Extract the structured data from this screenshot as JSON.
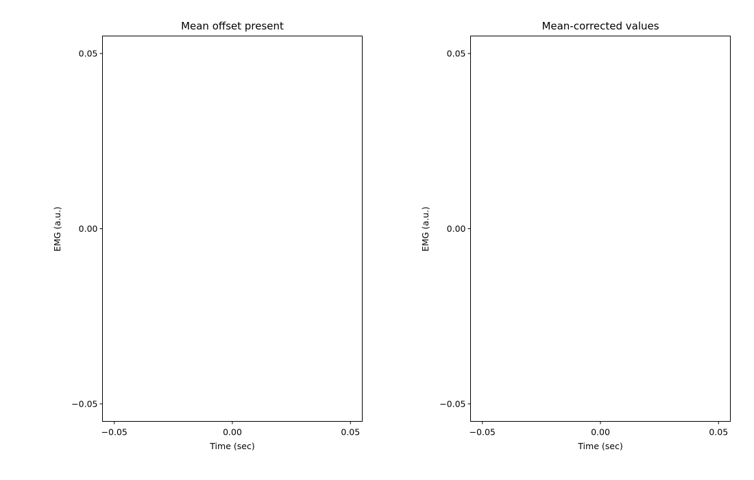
{
  "chart_data": [
    {
      "type": "line",
      "title": "Mean offset present",
      "xlabel": "Time (sec)",
      "ylabel": "EMG (a.u.)",
      "xlim": [
        -0.055,
        0.055
      ],
      "ylim": [
        -0.055,
        0.055
      ],
      "xticks": [
        -0.05,
        0.0,
        0.05
      ],
      "yticks": [
        -0.05,
        0.0,
        0.05
      ],
      "xtick_labels": [
        "−0.05",
        "0.00",
        "0.05"
      ],
      "ytick_labels": [
        "−0.05",
        "0.00",
        "0.05"
      ],
      "grid": false,
      "series": []
    },
    {
      "type": "line",
      "title": "Mean-corrected values",
      "xlabel": "Time (sec)",
      "ylabel": "EMG (a.u.)",
      "xlim": [
        -0.055,
        0.055
      ],
      "ylim": [
        -0.055,
        0.055
      ],
      "xticks": [
        -0.05,
        0.0,
        0.05
      ],
      "yticks": [
        -0.05,
        0.0,
        0.05
      ],
      "xtick_labels": [
        "−0.05",
        "0.00",
        "0.05"
      ],
      "ytick_labels": [
        "−0.05",
        "0.00",
        "0.05"
      ],
      "grid": false,
      "series": []
    }
  ]
}
